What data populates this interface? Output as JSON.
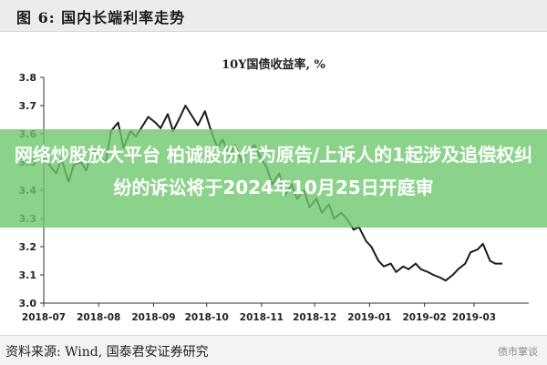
{
  "header": {
    "title": "图 6:  国内长端利率走势"
  },
  "overlay": {
    "text": "网络炒股放大平台 柏诚股份作为原告/上诉人的1起涉及追偿权纠纷的诉讼将于2024年10月25日开庭审"
  },
  "footer": {
    "source": "资料来源:  Wind, 国泰君安证券研究",
    "logo": "债市掌谈"
  },
  "colors": {
    "line": "#1b1b1b",
    "axis": "#333333",
    "banner": "#6ec86e"
  },
  "chart_data": {
    "type": "line",
    "title": "10Y国债收益率, %",
    "xlabel": "",
    "ylabel": "",
    "ylim": [
      3.0,
      3.8
    ],
    "yticks": [
      3.0,
      3.1,
      3.2,
      3.3,
      3.4,
      3.5,
      3.6,
      3.7,
      3.8
    ],
    "xticks": [
      "2018-07",
      "2018-08",
      "2018-09",
      "2018-10",
      "2018-11",
      "2018-12",
      "2019-01",
      "2019-02",
      "2019-03"
    ],
    "grid": false,
    "series": [
      {
        "name": "",
        "x": [
          "2018-07-01",
          "2018-07-04",
          "2018-07-08",
          "2018-07-11",
          "2018-07-15",
          "2018-07-18",
          "2018-07-22",
          "2018-07-25",
          "2018-07-29",
          "2018-08-01",
          "2018-08-05",
          "2018-08-08",
          "2018-08-12",
          "2018-08-15",
          "2018-08-19",
          "2018-08-22",
          "2018-08-26",
          "2018-08-29",
          "2018-09-02",
          "2018-09-05",
          "2018-09-09",
          "2018-09-12",
          "2018-09-16",
          "2018-09-19",
          "2018-09-23",
          "2018-09-26",
          "2018-09-30",
          "2018-10-03",
          "2018-10-07",
          "2018-10-10",
          "2018-10-14",
          "2018-10-17",
          "2018-10-21",
          "2018-10-24",
          "2018-10-28",
          "2018-10-31",
          "2018-11-04",
          "2018-11-07",
          "2018-11-11",
          "2018-11-14",
          "2018-11-18",
          "2018-11-21",
          "2018-11-25",
          "2018-11-28",
          "2018-12-02",
          "2018-12-05",
          "2018-12-09",
          "2018-12-12",
          "2018-12-16",
          "2018-12-19",
          "2018-12-23",
          "2018-12-26",
          "2018-12-30",
          "2019-01-02",
          "2019-01-06",
          "2019-01-09",
          "2019-01-13",
          "2019-01-16",
          "2019-01-20",
          "2019-01-23",
          "2019-01-27",
          "2019-01-30",
          "2019-02-03",
          "2019-02-06",
          "2019-02-10",
          "2019-02-13",
          "2019-02-17",
          "2019-02-20",
          "2019-02-24",
          "2019-02-27",
          "2019-03-03",
          "2019-03-06",
          "2019-03-10",
          "2019-03-13",
          "2019-03-17"
        ],
        "values": [
          3.55,
          3.49,
          3.46,
          3.51,
          3.43,
          3.49,
          3.5,
          3.47,
          3.55,
          3.52,
          3.5,
          3.61,
          3.64,
          3.55,
          3.61,
          3.59,
          3.63,
          3.66,
          3.64,
          3.62,
          3.67,
          3.61,
          3.66,
          3.7,
          3.66,
          3.63,
          3.68,
          3.62,
          3.55,
          3.58,
          3.52,
          3.56,
          3.5,
          3.54,
          3.56,
          3.52,
          3.48,
          3.42,
          3.46,
          3.38,
          3.42,
          3.37,
          3.4,
          3.34,
          3.37,
          3.32,
          3.35,
          3.3,
          3.32,
          3.3,
          3.26,
          3.27,
          3.22,
          3.2,
          3.15,
          3.13,
          3.14,
          3.11,
          3.13,
          3.12,
          3.14,
          3.12,
          3.11,
          3.1,
          3.09,
          3.08,
          3.1,
          3.12,
          3.14,
          3.18,
          3.19,
          3.21,
          3.15,
          3.14,
          3.14
        ]
      }
    ]
  }
}
